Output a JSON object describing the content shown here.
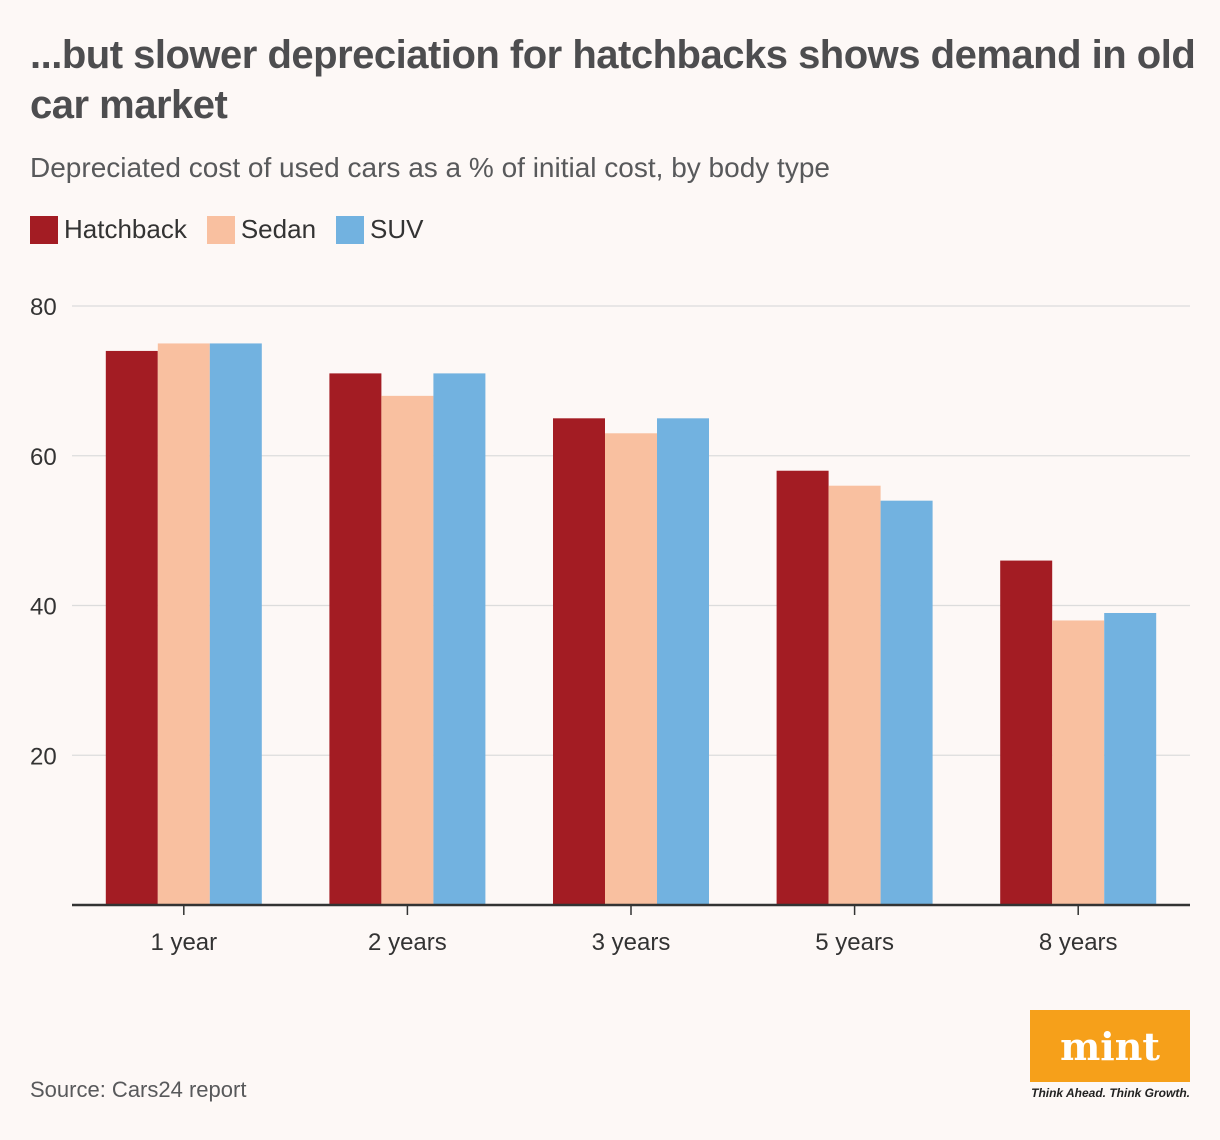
{
  "title": "...but slower depreciation for hatchbacks shows demand in old car market",
  "subtitle": "Depreciated cost of used cars as a % of initial cost, by body type",
  "source": "Source: Cars24 report",
  "logo": {
    "text": "mint",
    "tagline": "Think Ahead. Think Growth.",
    "color": "#f6a01a"
  },
  "legend": [
    {
      "label": "Hatchback",
      "color": "#a31c23"
    },
    {
      "label": "Sedan",
      "color": "#f9c0a0"
    },
    {
      "label": "SUV",
      "color": "#72b2e0"
    }
  ],
  "chart_data": {
    "type": "bar",
    "categories": [
      "1 year",
      "2 years",
      "3 years",
      "5 years",
      "8 years"
    ],
    "series": [
      {
        "name": "Hatchback",
        "color": "#a31c23",
        "values": [
          74,
          71,
          65,
          58,
          46
        ]
      },
      {
        "name": "Sedan",
        "color": "#f9c0a0",
        "values": [
          75,
          68,
          63,
          56,
          38
        ]
      },
      {
        "name": "SUV",
        "color": "#72b2e0",
        "values": [
          75,
          71,
          65,
          54,
          39
        ]
      }
    ],
    "ylim": [
      0,
      80
    ],
    "yticks": [
      20,
      40,
      60,
      80
    ],
    "grid": true,
    "legend_position": "top-left"
  }
}
